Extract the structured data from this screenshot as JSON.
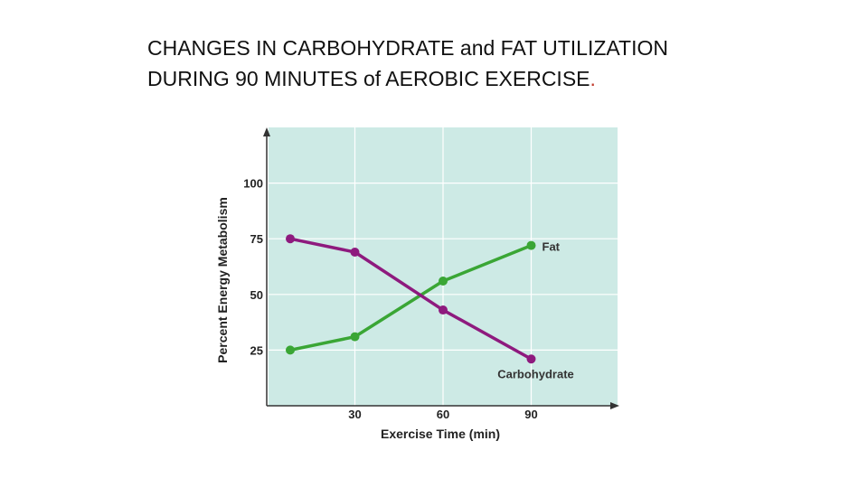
{
  "slide": {
    "title_line1": "CHANGES IN CARBOHYDRATE and FAT UTILIZATION",
    "title_line2": "DURING 90 MINUTES of AEROBIC EXERCISE",
    "title_dot": "."
  },
  "chart_data": {
    "type": "line",
    "title": "CHANGES IN CARBOHYDRATE and FAT UTILIZATION DURING 90 MINUTES of AEROBIC EXERCISE.",
    "xlabel": "Exercise Time (min)",
    "ylabel": "Percent Energy Metabolism",
    "x": [
      8,
      30,
      60,
      90
    ],
    "x_ticks": [
      30,
      60,
      90
    ],
    "y_ticks": [
      25,
      50,
      75,
      100
    ],
    "xlim": [
      0,
      120
    ],
    "ylim": [
      0,
      125
    ],
    "grid": true,
    "background_color": "#cdeae5",
    "series": [
      {
        "name": "Fat",
        "values": [
          25,
          31,
          56,
          72
        ],
        "color": "#3aa635"
      },
      {
        "name": "Carbohydrate",
        "values": [
          75,
          69,
          43,
          21
        ],
        "color": "#8e1a7e"
      }
    ]
  }
}
